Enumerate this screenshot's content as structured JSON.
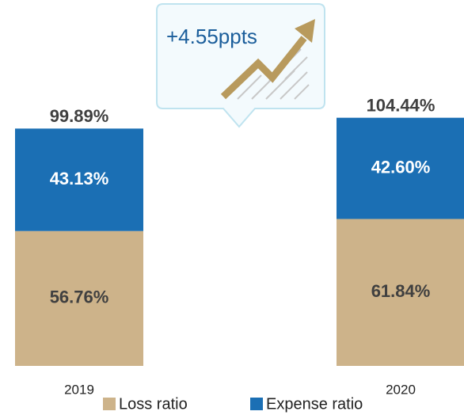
{
  "chart_data": {
    "type": "stacked_bar",
    "categories": [
      "2019",
      "2020"
    ],
    "series": [
      {
        "name": "Loss ratio",
        "color": "#cdb38a",
        "values": [
          56.76,
          61.84
        ],
        "value_labels": [
          "56.76%",
          "61.84%"
        ]
      },
      {
        "name": "Expense ratio",
        "color": "#1b6fb4",
        "values": [
          43.13,
          42.6
        ],
        "value_labels": [
          "43.13%",
          "42.60%"
        ]
      }
    ],
    "totals": [
      99.89,
      104.44
    ],
    "total_labels": [
      "99.89%",
      "104.44%"
    ],
    "annotation": "+4.55ppts"
  }
}
